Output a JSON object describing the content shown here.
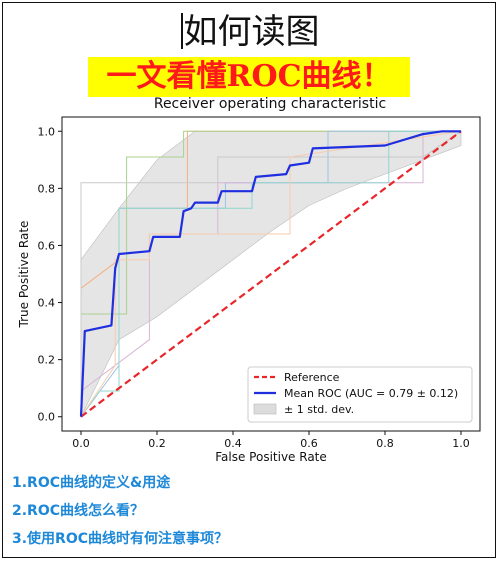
{
  "header": {
    "headline": "如何读图",
    "banner": "一文看懂ROC曲线！",
    "banner_bg": "#ffff00",
    "banner_color": "#ff1a1a"
  },
  "toc": {
    "items": [
      "1.ROC曲线的定义&用途",
      "2.ROC曲线怎么看？",
      "3.使用ROC曲线时有何注意事项？"
    ],
    "color": "#1e88d8"
  },
  "chart_data": {
    "type": "line",
    "title": "Receiver operating characteristic",
    "xlabel": "False Positive Rate",
    "ylabel": "True Positive Rate",
    "xlim": [
      -0.05,
      1.05
    ],
    "ylim": [
      -0.05,
      1.05
    ],
    "xticks": [
      "0.0",
      "0.2",
      "0.4",
      "0.6",
      "0.8",
      "1.0"
    ],
    "yticks": [
      "0.0",
      "0.2",
      "0.4",
      "0.6",
      "0.8",
      "1.0"
    ],
    "grid": false,
    "legend_position": "lower-right",
    "legend": [
      "Reference",
      "Mean ROC (AUC = 0.79 ± 0.12)",
      "± 1 std. dev."
    ],
    "reference": {
      "x": [
        0,
        1
      ],
      "y": [
        0,
        1
      ],
      "color": "#e8262a",
      "dash": true
    },
    "mean_roc": {
      "color": "#1f2fe0",
      "x": [
        0,
        0.01,
        0.08,
        0.09,
        0.1,
        0.18,
        0.19,
        0.26,
        0.27,
        0.29,
        0.3,
        0.36,
        0.37,
        0.45,
        0.46,
        0.54,
        0.55,
        0.6,
        0.61,
        0.8,
        0.9,
        0.95,
        1.0
      ],
      "y": [
        0,
        0.3,
        0.32,
        0.52,
        0.57,
        0.58,
        0.63,
        0.63,
        0.72,
        0.73,
        0.75,
        0.75,
        0.79,
        0.79,
        0.84,
        0.85,
        0.88,
        0.89,
        0.94,
        0.95,
        0.99,
        1.0,
        1.0
      ]
    },
    "std_band": {
      "color": "#dcdcdc",
      "x": [
        0,
        0.1,
        0.2,
        0.3,
        0.4,
        0.5,
        0.6,
        0.7,
        0.8,
        0.9,
        1.0
      ],
      "upper": [
        0.55,
        0.73,
        0.9,
        1.0,
        1.0,
        1.0,
        1.0,
        1.0,
        1.0,
        1.0,
        1.0
      ],
      "lower": [
        0.0,
        0.27,
        0.35,
        0.45,
        0.55,
        0.65,
        0.74,
        0.8,
        0.85,
        0.9,
        0.95
      ]
    },
    "folds": [
      {
        "color": "#f4b183",
        "x": [
          0,
          0,
          0.1,
          0.1,
          0.28,
          0.28,
          1
        ],
        "y": [
          0,
          0.45,
          0.55,
          0.73,
          0.73,
          1,
          1
        ]
      },
      {
        "color": "#a9d18e",
        "x": [
          0,
          0,
          0.08,
          0.12,
          0.12,
          0.27,
          0.27,
          1
        ],
        "y": [
          0,
          0.36,
          0.36,
          0.36,
          0.91,
          0.91,
          1,
          1
        ]
      },
      {
        "color": "#9dc3e6",
        "x": [
          0,
          0.1,
          0.1,
          0.38,
          0.38,
          0.65,
          0.65,
          1
        ],
        "y": [
          0,
          0.18,
          0.73,
          0.73,
          0.82,
          0.82,
          1,
          1
        ]
      },
      {
        "color": "#d9b3d6",
        "x": [
          0,
          0,
          0.18,
          0.18,
          0.36,
          0.36,
          0.9,
          0.9,
          1
        ],
        "y": [
          0,
          0.09,
          0.27,
          0.64,
          0.64,
          0.82,
          0.82,
          1,
          1
        ]
      },
      {
        "color": "#c9c9c9",
        "x": [
          0,
          0,
          0.09,
          0.09,
          0.36,
          0.36,
          0.9,
          1
        ],
        "y": [
          0,
          0.82,
          0.82,
          0.82,
          0.82,
          0.91,
          0.91,
          1
        ]
      },
      {
        "color": "#8fd6cf",
        "x": [
          0,
          0.05,
          0.1,
          0.1,
          0.45,
          0.45,
          0.81,
          0.81,
          1
        ],
        "y": [
          0,
          0.09,
          0.09,
          0.73,
          0.73,
          0.82,
          0.82,
          1,
          1
        ]
      },
      {
        "color": "#f8cbad",
        "x": [
          0,
          0.09,
          0.09,
          0.18,
          0.18,
          0.55,
          0.55,
          1
        ],
        "y": [
          0,
          0.18,
          0.55,
          0.55,
          0.64,
          0.64,
          0.91,
          1
        ]
      }
    ]
  }
}
